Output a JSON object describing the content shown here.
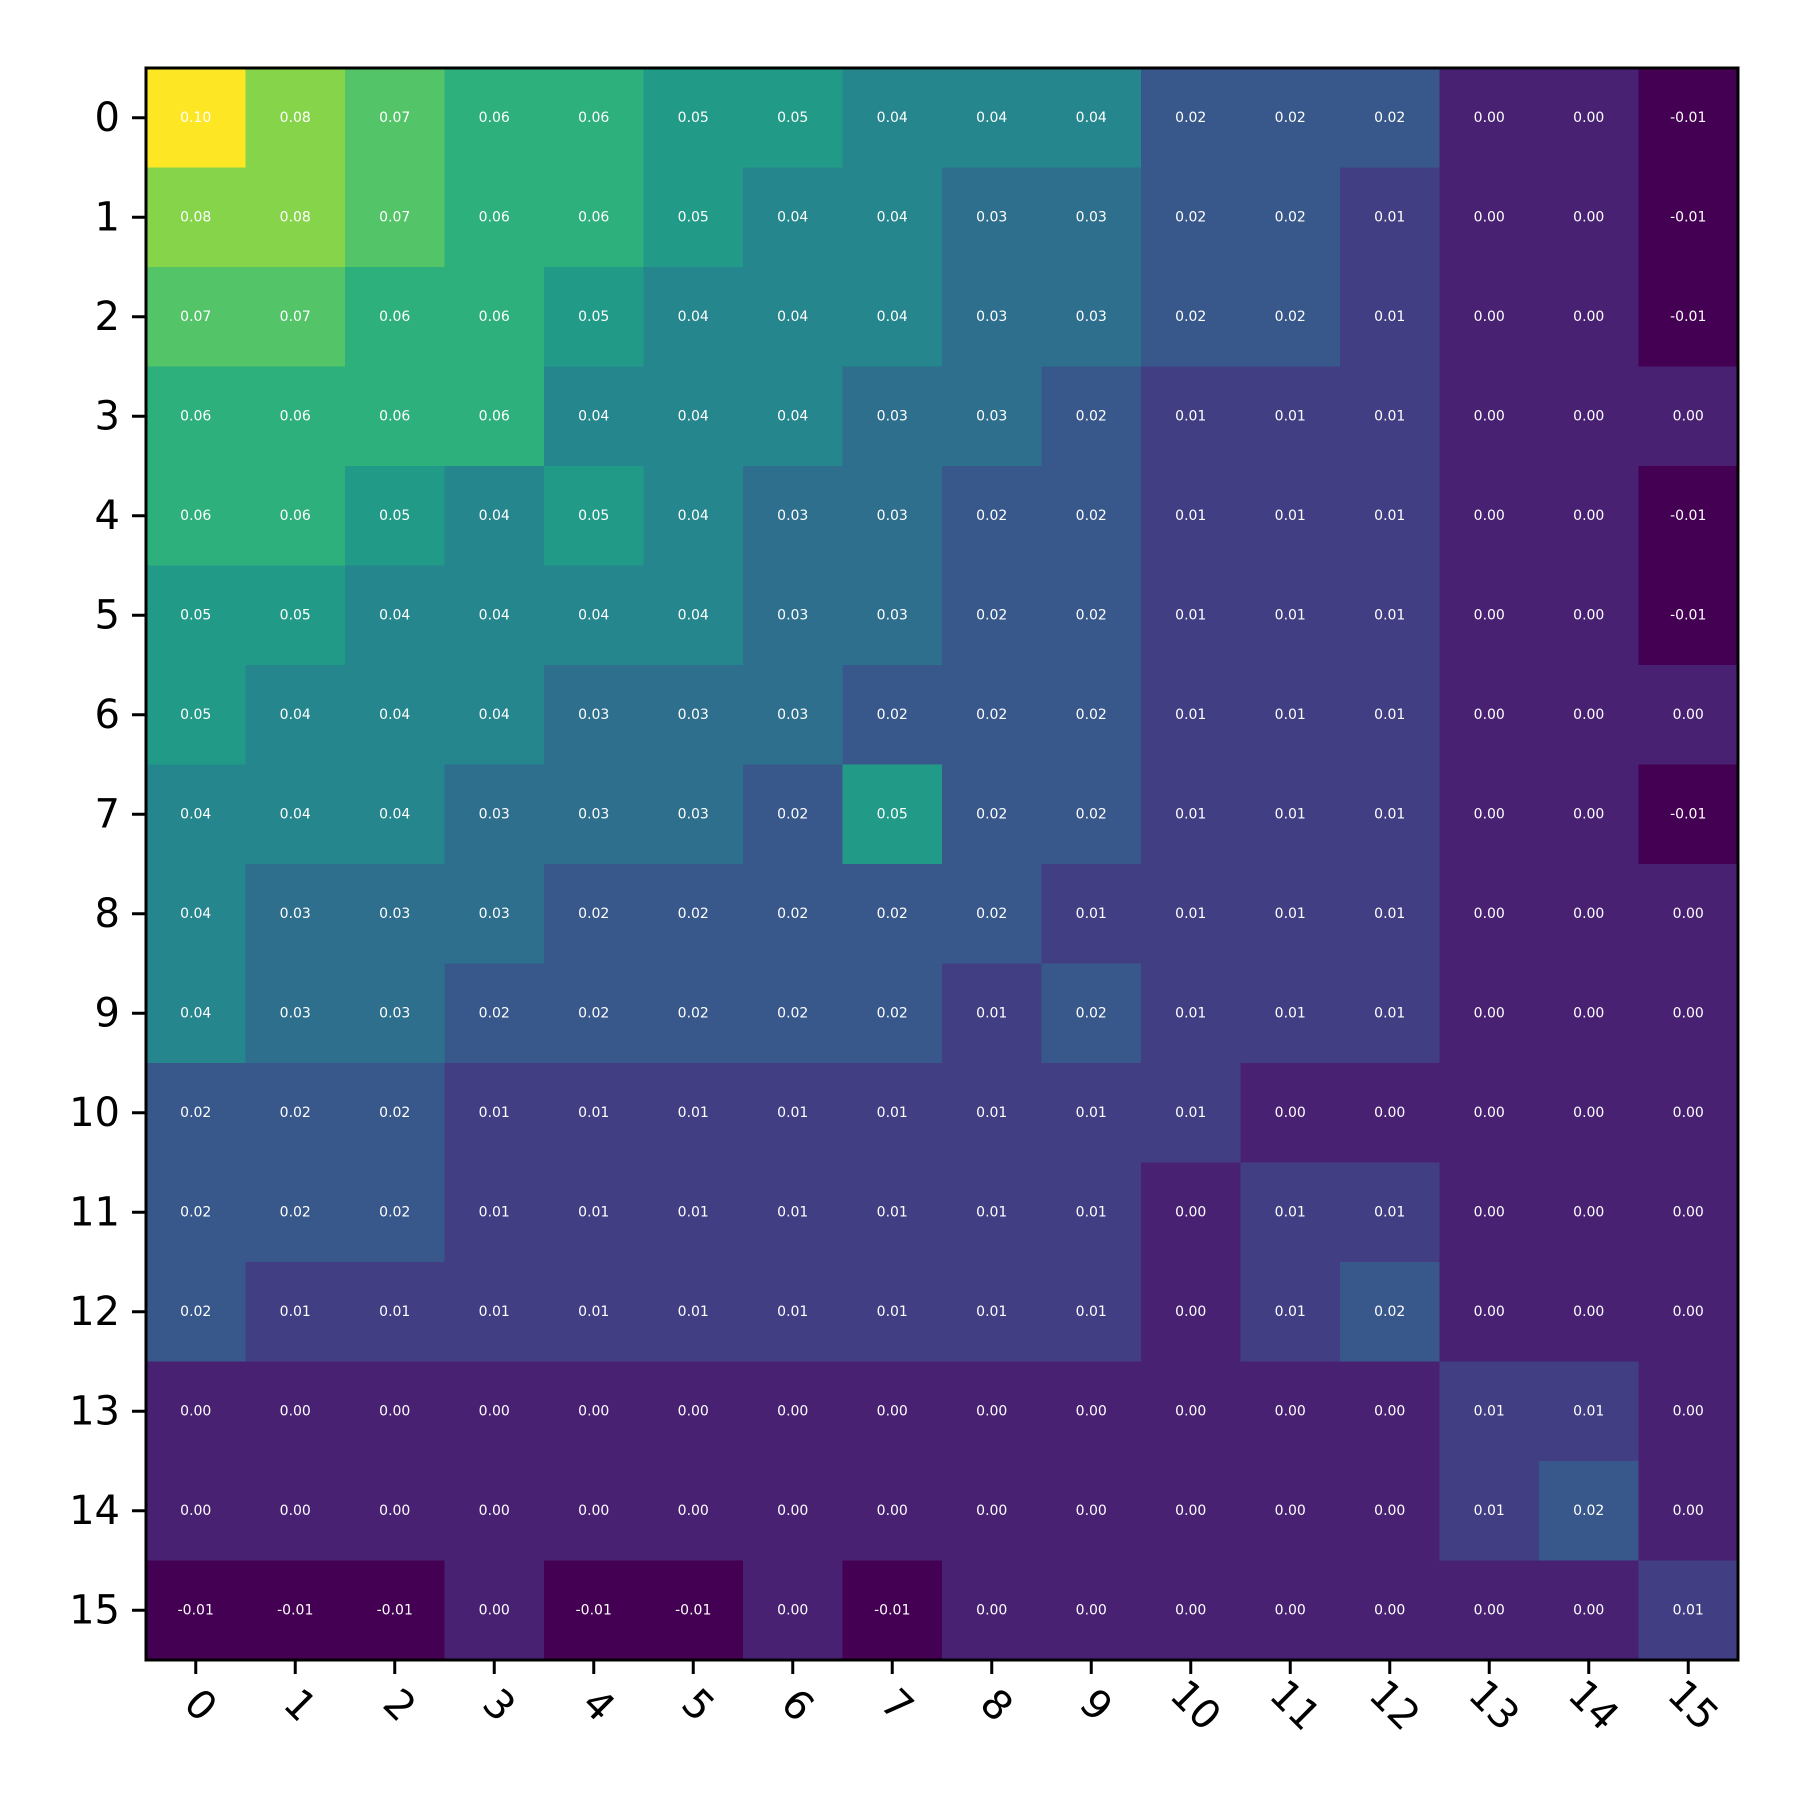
{
  "chart_data": {
    "type": "heatmap",
    "x_ticks": [
      "0",
      "1",
      "2",
      "3",
      "4",
      "5",
      "6",
      "7",
      "8",
      "9",
      "10",
      "11",
      "12",
      "13",
      "14",
      "15"
    ],
    "y_ticks": [
      "0",
      "1",
      "2",
      "3",
      "4",
      "5",
      "6",
      "7",
      "8",
      "9",
      "10",
      "11",
      "12",
      "13",
      "14",
      "15"
    ],
    "value_range": [
      -0.01,
      0.1
    ],
    "colormap": "viridis",
    "cell_label_color": "#ffffff",
    "x_tick_rotation_deg": 45,
    "values": [
      [
        0.1,
        0.08,
        0.07,
        0.06,
        0.06,
        0.05,
        0.05,
        0.04,
        0.04,
        0.04,
        0.02,
        0.02,
        0.02,
        0.0,
        -0.0,
        -0.01
      ],
      [
        0.08,
        0.08,
        0.07,
        0.06,
        0.06,
        0.05,
        0.04,
        0.04,
        0.03,
        0.03,
        0.02,
        0.02,
        0.01,
        0.0,
        -0.0,
        -0.01
      ],
      [
        0.07,
        0.07,
        0.06,
        0.06,
        0.05,
        0.04,
        0.04,
        0.04,
        0.03,
        0.03,
        0.02,
        0.02,
        0.01,
        0.0,
        -0.0,
        -0.01
      ],
      [
        0.06,
        0.06,
        0.06,
        0.06,
        0.04,
        0.04,
        0.04,
        0.03,
        0.03,
        0.02,
        0.01,
        0.01,
        0.01,
        0.0,
        0.0,
        -0.0
      ],
      [
        0.06,
        0.06,
        0.05,
        0.04,
        0.05,
        0.04,
        0.03,
        0.03,
        0.02,
        0.02,
        0.01,
        0.01,
        0.01,
        0.0,
        -0.0,
        -0.01
      ],
      [
        0.05,
        0.05,
        0.04,
        0.04,
        0.04,
        0.04,
        0.03,
        0.03,
        0.02,
        0.02,
        0.01,
        0.01,
        0.01,
        0.0,
        -0.0,
        -0.01
      ],
      [
        0.05,
        0.04,
        0.04,
        0.04,
        0.03,
        0.03,
        0.03,
        0.02,
        0.02,
        0.02,
        0.01,
        0.01,
        0.01,
        0.0,
        -0.0,
        -0.0
      ],
      [
        0.04,
        0.04,
        0.04,
        0.03,
        0.03,
        0.03,
        0.02,
        0.05,
        0.02,
        0.02,
        0.01,
        0.01,
        0.01,
        0.0,
        -0.0,
        -0.01
      ],
      [
        0.04,
        0.03,
        0.03,
        0.03,
        0.02,
        0.02,
        0.02,
        0.02,
        0.02,
        0.01,
        0.01,
        0.01,
        0.01,
        0.0,
        0.0,
        -0.0
      ],
      [
        0.04,
        0.03,
        0.03,
        0.02,
        0.02,
        0.02,
        0.02,
        0.02,
        0.01,
        0.02,
        0.01,
        0.01,
        0.01,
        0.0,
        0.0,
        -0.0
      ],
      [
        0.02,
        0.02,
        0.02,
        0.01,
        0.01,
        0.01,
        0.01,
        0.01,
        0.01,
        0.01,
        0.01,
        0.0,
        0.0,
        0.0,
        0.0,
        -0.0
      ],
      [
        0.02,
        0.02,
        0.02,
        0.01,
        0.01,
        0.01,
        0.01,
        0.01,
        0.01,
        0.01,
        0.0,
        0.01,
        0.01,
        0.0,
        0.0,
        -0.0
      ],
      [
        0.02,
        0.01,
        0.01,
        0.01,
        0.01,
        0.01,
        0.01,
        0.01,
        0.01,
        0.01,
        0.0,
        0.01,
        0.02,
        0.0,
        0.0,
        -0.0
      ],
      [
        0.0,
        0.0,
        0.0,
        0.0,
        0.0,
        0.0,
        0.0,
        0.0,
        0.0,
        0.0,
        0.0,
        0.0,
        0.0,
        0.01,
        0.01,
        0.0
      ],
      [
        -0.0,
        -0.0,
        -0.0,
        0.0,
        -0.0,
        -0.0,
        -0.0,
        -0.0,
        0.0,
        0.0,
        0.0,
        0.0,
        0.0,
        0.01,
        0.02,
        0.0
      ],
      [
        -0.01,
        -0.01,
        -0.01,
        -0.0,
        -0.01,
        -0.01,
        -0.0,
        -0.01,
        -0.0,
        -0.0,
        -0.0,
        -0.0,
        -0.0,
        0.0,
        0.0,
        0.01
      ]
    ]
  }
}
